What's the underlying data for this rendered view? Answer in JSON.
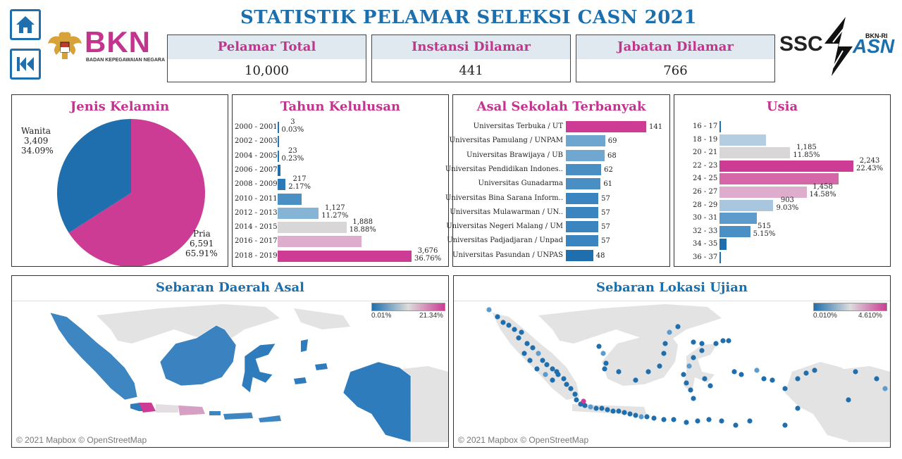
{
  "header": {
    "title": "STATISTIK PELAMAR SELEKSI CASN 2021",
    "bkn_logo": "BKN",
    "bkn_subtitle": "BADAN KEPEGAWAIAN NEGARA",
    "ssc_logo": "SSC",
    "asn_logo": "ASN",
    "bknri_label": "BKN-RI"
  },
  "kpis": [
    {
      "label": "Pelamar Total",
      "value": "10,000"
    },
    {
      "label": "Instansi Dilamar",
      "value": "441"
    },
    {
      "label": "Jabatan Dilamar",
      "value": "766"
    }
  ],
  "gender": {
    "title": "Jenis Kelamin",
    "wanita": {
      "label": "Wanita",
      "count": "3,409",
      "pct": "34.09%"
    },
    "pria": {
      "label": "Pria",
      "count": "6,591",
      "pct": "65.91%"
    }
  },
  "tahun": {
    "title": "Tahun Kelulusan",
    "rows": [
      {
        "cat": "2000 - 2001",
        "value": 3,
        "count": "3",
        "pct": "0.03%",
        "color": "#1f77b4"
      },
      {
        "cat": "2002 - 2003",
        "value": 1,
        "count": "",
        "pct": "",
        "color": "#1f77b4"
      },
      {
        "cat": "2004 - 2005",
        "value": 23,
        "count": "23",
        "pct": "0.23%",
        "color": "#1f77b4"
      },
      {
        "cat": "2006 - 2007",
        "value": 70,
        "count": "",
        "pct": "",
        "color": "#1f6fae"
      },
      {
        "cat": "2008 - 2009",
        "value": 217,
        "count": "217",
        "pct": "2.17%",
        "color": "#2a7ab8"
      },
      {
        "cat": "2010 - 2011",
        "value": 650,
        "count": "",
        "pct": "",
        "color": "#4a90c4"
      },
      {
        "cat": "2012 - 2013",
        "value": 1127,
        "count": "1,127",
        "pct": "11.27%",
        "color": "#86b4d6"
      },
      {
        "cat": "2014 - 2015",
        "value": 1888,
        "count": "1,888",
        "pct": "18.88%",
        "color": "#d9d6d8"
      },
      {
        "cat": "2016 - 2017",
        "value": 2300,
        "count": "",
        "pct": "",
        "color": "#deaccc"
      },
      {
        "cat": "2018 - 2019",
        "value": 3676,
        "count": "3,676",
        "pct": "36.76%",
        "color": "#cc3c94"
      }
    ]
  },
  "sekolah": {
    "title": "Asal Sekolah Terbanyak",
    "rows": [
      {
        "cat": "Universitas Terbuka / UT",
        "value": 141,
        "color": "#cc3c94"
      },
      {
        "cat": "Universitas Pamulang / UNPAM",
        "value": 69,
        "color": "#6ea6d0"
      },
      {
        "cat": "Universitas Brawijaya / UB",
        "value": 68,
        "color": "#6fa7d0"
      },
      {
        "cat": "Universitas Pendidikan Indones..",
        "value": 62,
        "color": "#4a8fc4"
      },
      {
        "cat": "Universitas Gunadarma",
        "value": 61,
        "color": "#4a8fc4"
      },
      {
        "cat": "Universitas Bina Sarana Inform..",
        "value": 57,
        "color": "#3a85bf"
      },
      {
        "cat": "Universitas Mulawarman / UN..",
        "value": 57,
        "color": "#3a85bf"
      },
      {
        "cat": "Universitas Negeri Malang / UM",
        "value": 57,
        "color": "#3a85bf"
      },
      {
        "cat": "Universitas Padjadjaran / Unpad",
        "value": 57,
        "color": "#3a85bf"
      },
      {
        "cat": "Universitas Pasundan / UNPAS",
        "value": 48,
        "color": "#1f6fae"
      }
    ]
  },
  "usia": {
    "title": "Usia",
    "rows": [
      {
        "cat": "16 - 17",
        "value": 2,
        "count": "",
        "pct": "",
        "color": "#1f6fae"
      },
      {
        "cat": "18 - 19",
        "value": 780,
        "count": "",
        "pct": "",
        "color": "#b4cde0"
      },
      {
        "cat": "20 - 21",
        "value": 1185,
        "count": "1,185",
        "pct": "11.85%",
        "color": "#d9d6d8"
      },
      {
        "cat": "22 - 23",
        "value": 2243,
        "count": "2,243",
        "pct": "22.43%",
        "color": "#cc3c94"
      },
      {
        "cat": "24 - 25",
        "value": 2000,
        "count": "",
        "pct": "",
        "color": "#d566a8"
      },
      {
        "cat": "26 - 27",
        "value": 1458,
        "count": "1,458",
        "pct": "14.58%",
        "color": "#deaccc"
      },
      {
        "cat": "28 - 29",
        "value": 903,
        "count": "903",
        "pct": "9.03%",
        "color": "#a8c6dd"
      },
      {
        "cat": "30 - 31",
        "value": 620,
        "count": "",
        "pct": "",
        "color": "#5c9bcb"
      },
      {
        "cat": "32 - 33",
        "value": 515,
        "count": "515",
        "pct": "5.15%",
        "color": "#4a90c4"
      },
      {
        "cat": "34 - 35",
        "value": 120,
        "count": "",
        "pct": "",
        "color": "#1f6fae"
      },
      {
        "cat": "36 - 37",
        "value": 5,
        "count": "",
        "pct": "",
        "color": "#1f6fae"
      }
    ]
  },
  "maps": [
    {
      "title": "Sebaran Daerah Asal",
      "legend_min": "0.01%",
      "legend_max": "21.34%",
      "credit": "© 2021 Mapbox © OpenStreetMap"
    },
    {
      "title": "Sebaran Lokasi Ujian",
      "legend_min": "0.010%",
      "legend_max": "4.610%",
      "credit": "© 2021 Mapbox © OpenStreetMap"
    }
  ],
  "colors": {
    "blue": "#1b6fad",
    "magenta": "#c2348d",
    "grey": "#dcdcdc"
  }
}
